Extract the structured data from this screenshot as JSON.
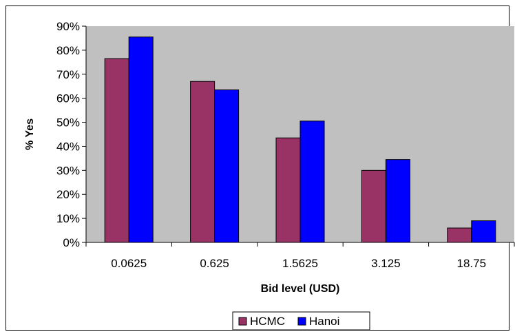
{
  "chart_data": {
    "type": "bar",
    "categories": [
      "0.0625",
      "0.625",
      "1.5625",
      "3.125",
      "18.75"
    ],
    "series": [
      {
        "name": "HCMC",
        "values": [
          76.5,
          67.0,
          43.5,
          30.0,
          6.0
        ],
        "color": "#993366"
      },
      {
        "name": "Hanoi",
        "values": [
          85.5,
          63.5,
          50.5,
          34.5,
          9.0
        ],
        "color": "#0000FF"
      }
    ],
    "title": "",
    "xlabel": "Bid level (USD)",
    "ylabel": "% Yes",
    "ylim": [
      0,
      90
    ],
    "yticks": [
      "0%",
      "10%",
      "20%",
      "30%",
      "40%",
      "50%",
      "60%",
      "70%",
      "80%",
      "90%"
    ],
    "grid": false,
    "plot_background": "#C0C0C0",
    "legend_position": "bottom"
  }
}
